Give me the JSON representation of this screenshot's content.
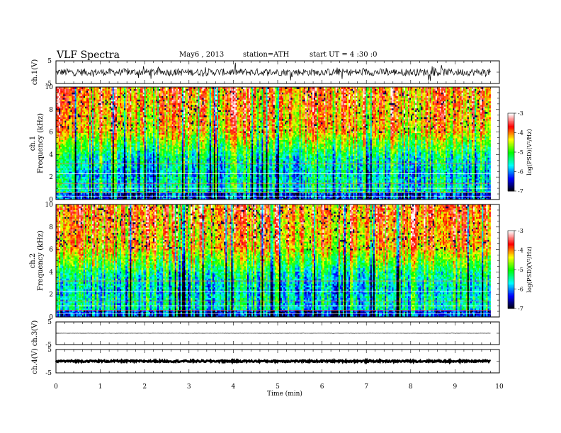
{
  "header": {
    "title": "VLF  Spectra",
    "date": "May6  , 2013",
    "station": "station=ATH",
    "start": "start  UT  =   4  :30 :0"
  },
  "chart_data": {
    "type": "heatmap",
    "xlabel": "Time  (min)",
    "xlim": [
      0,
      10
    ],
    "xticks": [
      0,
      1,
      2,
      3,
      4,
      5,
      6,
      7,
      8,
      9,
      10
    ],
    "data_end_min": 9.8,
    "panels": [
      {
        "type": "line",
        "ylabel": "ch.1(V)",
        "ylim": [
          -5,
          5
        ],
        "yticks": [
          "5",
          "-5"
        ],
        "baseline": 0,
        "noise_amplitude": 1.6
      },
      {
        "type": "heatmap",
        "ylabel_top": "ch.1",
        "ylabel": "Frequency  (kHz)",
        "ylim": [
          0,
          10
        ],
        "yticks": [
          "0",
          "2",
          "4",
          "6",
          "8",
          "10"
        ],
        "zlabel": "log(PSD)(V²/Hz)",
        "zlim": [
          -7,
          -3
        ],
        "zticks": [
          "-3",
          "-4",
          "-5",
          "-6",
          "-7"
        ]
      },
      {
        "type": "heatmap",
        "ylabel_top": "ch.2",
        "ylabel": "Frequency  (kHz)",
        "ylim": [
          0,
          10
        ],
        "yticks": [
          "0",
          "2",
          "4",
          "6",
          "8",
          "10"
        ],
        "zlabel": "log(PSD)(V²/Hz)",
        "zlim": [
          -7,
          -3
        ],
        "zticks": [
          "-3",
          "-4",
          "-5",
          "-6",
          "-7"
        ]
      },
      {
        "type": "line",
        "ylabel": "ch.3(V)",
        "ylim": [
          -5,
          5
        ],
        "yticks": [
          "5",
          "-5"
        ],
        "baseline": 0,
        "noise_amplitude": 0.05
      },
      {
        "type": "line",
        "ylabel": "ch.4(V)",
        "ylim": [
          -5,
          5
        ],
        "yticks": [
          "5",
          "-5"
        ],
        "baseline": 0,
        "noise_amplitude": 0.35
      }
    ],
    "colors": {
      "axis": "#000000",
      "trace": "#000000",
      "colormap": [
        "#000000",
        "#0000ff",
        "#00ffff",
        "#00ff00",
        "#ffff00",
        "#ff0000",
        "#ffffff"
      ]
    }
  }
}
